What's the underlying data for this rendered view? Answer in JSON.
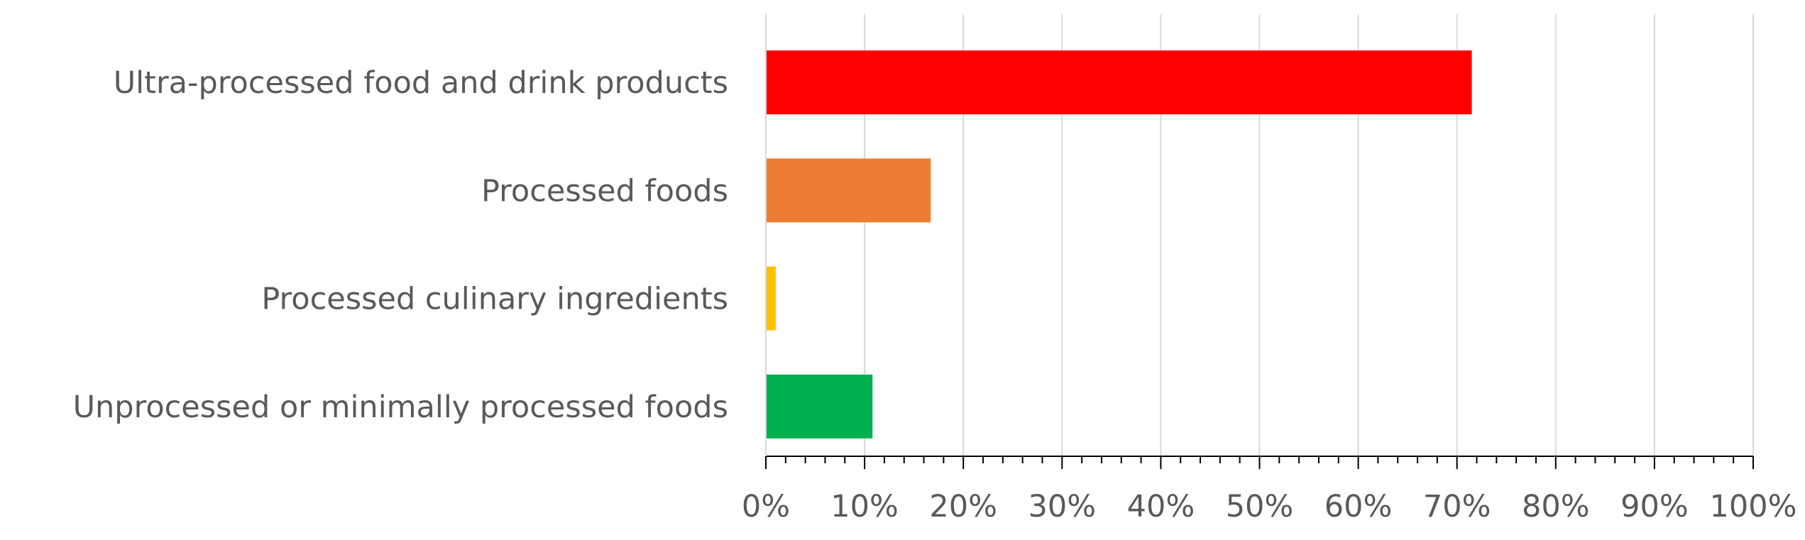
{
  "chart_data": {
    "type": "bar",
    "orientation": "horizontal",
    "categories": [
      "Ultra-processed food and drink products",
      "Processed foods",
      "Processed culinary ingredients",
      "Unprocessed or minimally processed foods"
    ],
    "values": [
      71.5,
      16.7,
      1.0,
      10.8
    ],
    "colors": [
      "#ff0000",
      "#ed7d31",
      "#ffc000",
      "#00b050"
    ],
    "xlim": [
      0,
      100
    ],
    "x_ticks": [
      0,
      10,
      20,
      30,
      40,
      50,
      60,
      70,
      80,
      90,
      100
    ],
    "x_tick_labels": [
      "0%",
      "10%",
      "20%",
      "30%",
      "40%",
      "50%",
      "60%",
      "70%",
      "80%",
      "90%",
      "100%"
    ],
    "grid": "vertical",
    "title": "",
    "xlabel": "",
    "ylabel": ""
  }
}
